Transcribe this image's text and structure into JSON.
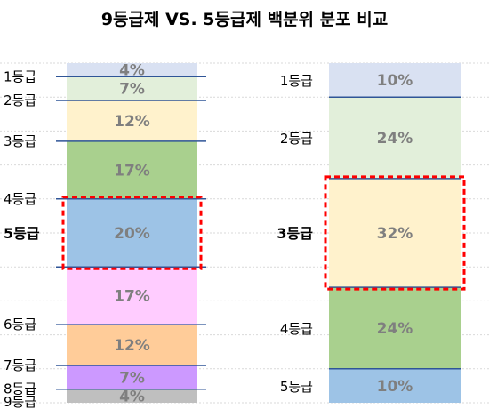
{
  "chart_data": {
    "type": "bar",
    "title": "9등급제 VS. 5등급제 백분위 분포 비교",
    "stacked": true,
    "ylim": [
      0,
      100
    ],
    "grid": true,
    "series": [
      {
        "name": "",
        "highlight_index": 4,
        "segments": [
          {
            "label": "1등급",
            "value": 4,
            "display": "4%",
            "color": "#d9e1f2"
          },
          {
            "label": "2등급",
            "value": 7,
            "display": "7%",
            "color": "#e2efda"
          },
          {
            "label": "3등급",
            "value": 12,
            "display": "12%",
            "color": "#fff2cc"
          },
          {
            "label": "4등급",
            "value": 17,
            "display": "17%",
            "color": "#a9d08e"
          },
          {
            "label": "5등급",
            "value": 20,
            "display": "20%",
            "color": "#9dc3e6"
          },
          {
            "label": "6등급",
            "value": 17,
            "display": "17%",
            "color": "#ffccff"
          },
          {
            "label": "7등급",
            "value": 12,
            "display": "12%",
            "color": "#ffcc99"
          },
          {
            "label": "8등급",
            "value": 7,
            "display": "7%",
            "color": "#cc99ff"
          },
          {
            "label": "9등급",
            "value": 4,
            "display": "4%",
            "color": "#bfbfbf"
          }
        ]
      },
      {
        "name": "",
        "highlight_index": 2,
        "segments": [
          {
            "label": "1등급",
            "value": 10,
            "display": "10%",
            "color": "#d9e1f2"
          },
          {
            "label": "2등급",
            "value": 24,
            "display": "24%",
            "color": "#e2efda"
          },
          {
            "label": "3등급",
            "value": 32,
            "display": "32%",
            "color": "#fff2cc"
          },
          {
            "label": "4등급",
            "value": 24,
            "display": "24%",
            "color": "#a9d08e"
          },
          {
            "label": "5등급",
            "value": 10,
            "display": "10%",
            "color": "#9dc3e6"
          }
        ]
      }
    ],
    "colors": {
      "boundary_line": "#2f5597",
      "highlight_box": "#ff0000",
      "value_text": "#7f7f7f",
      "label_text": "#000000",
      "grid": "#d9d9d9"
    }
  }
}
